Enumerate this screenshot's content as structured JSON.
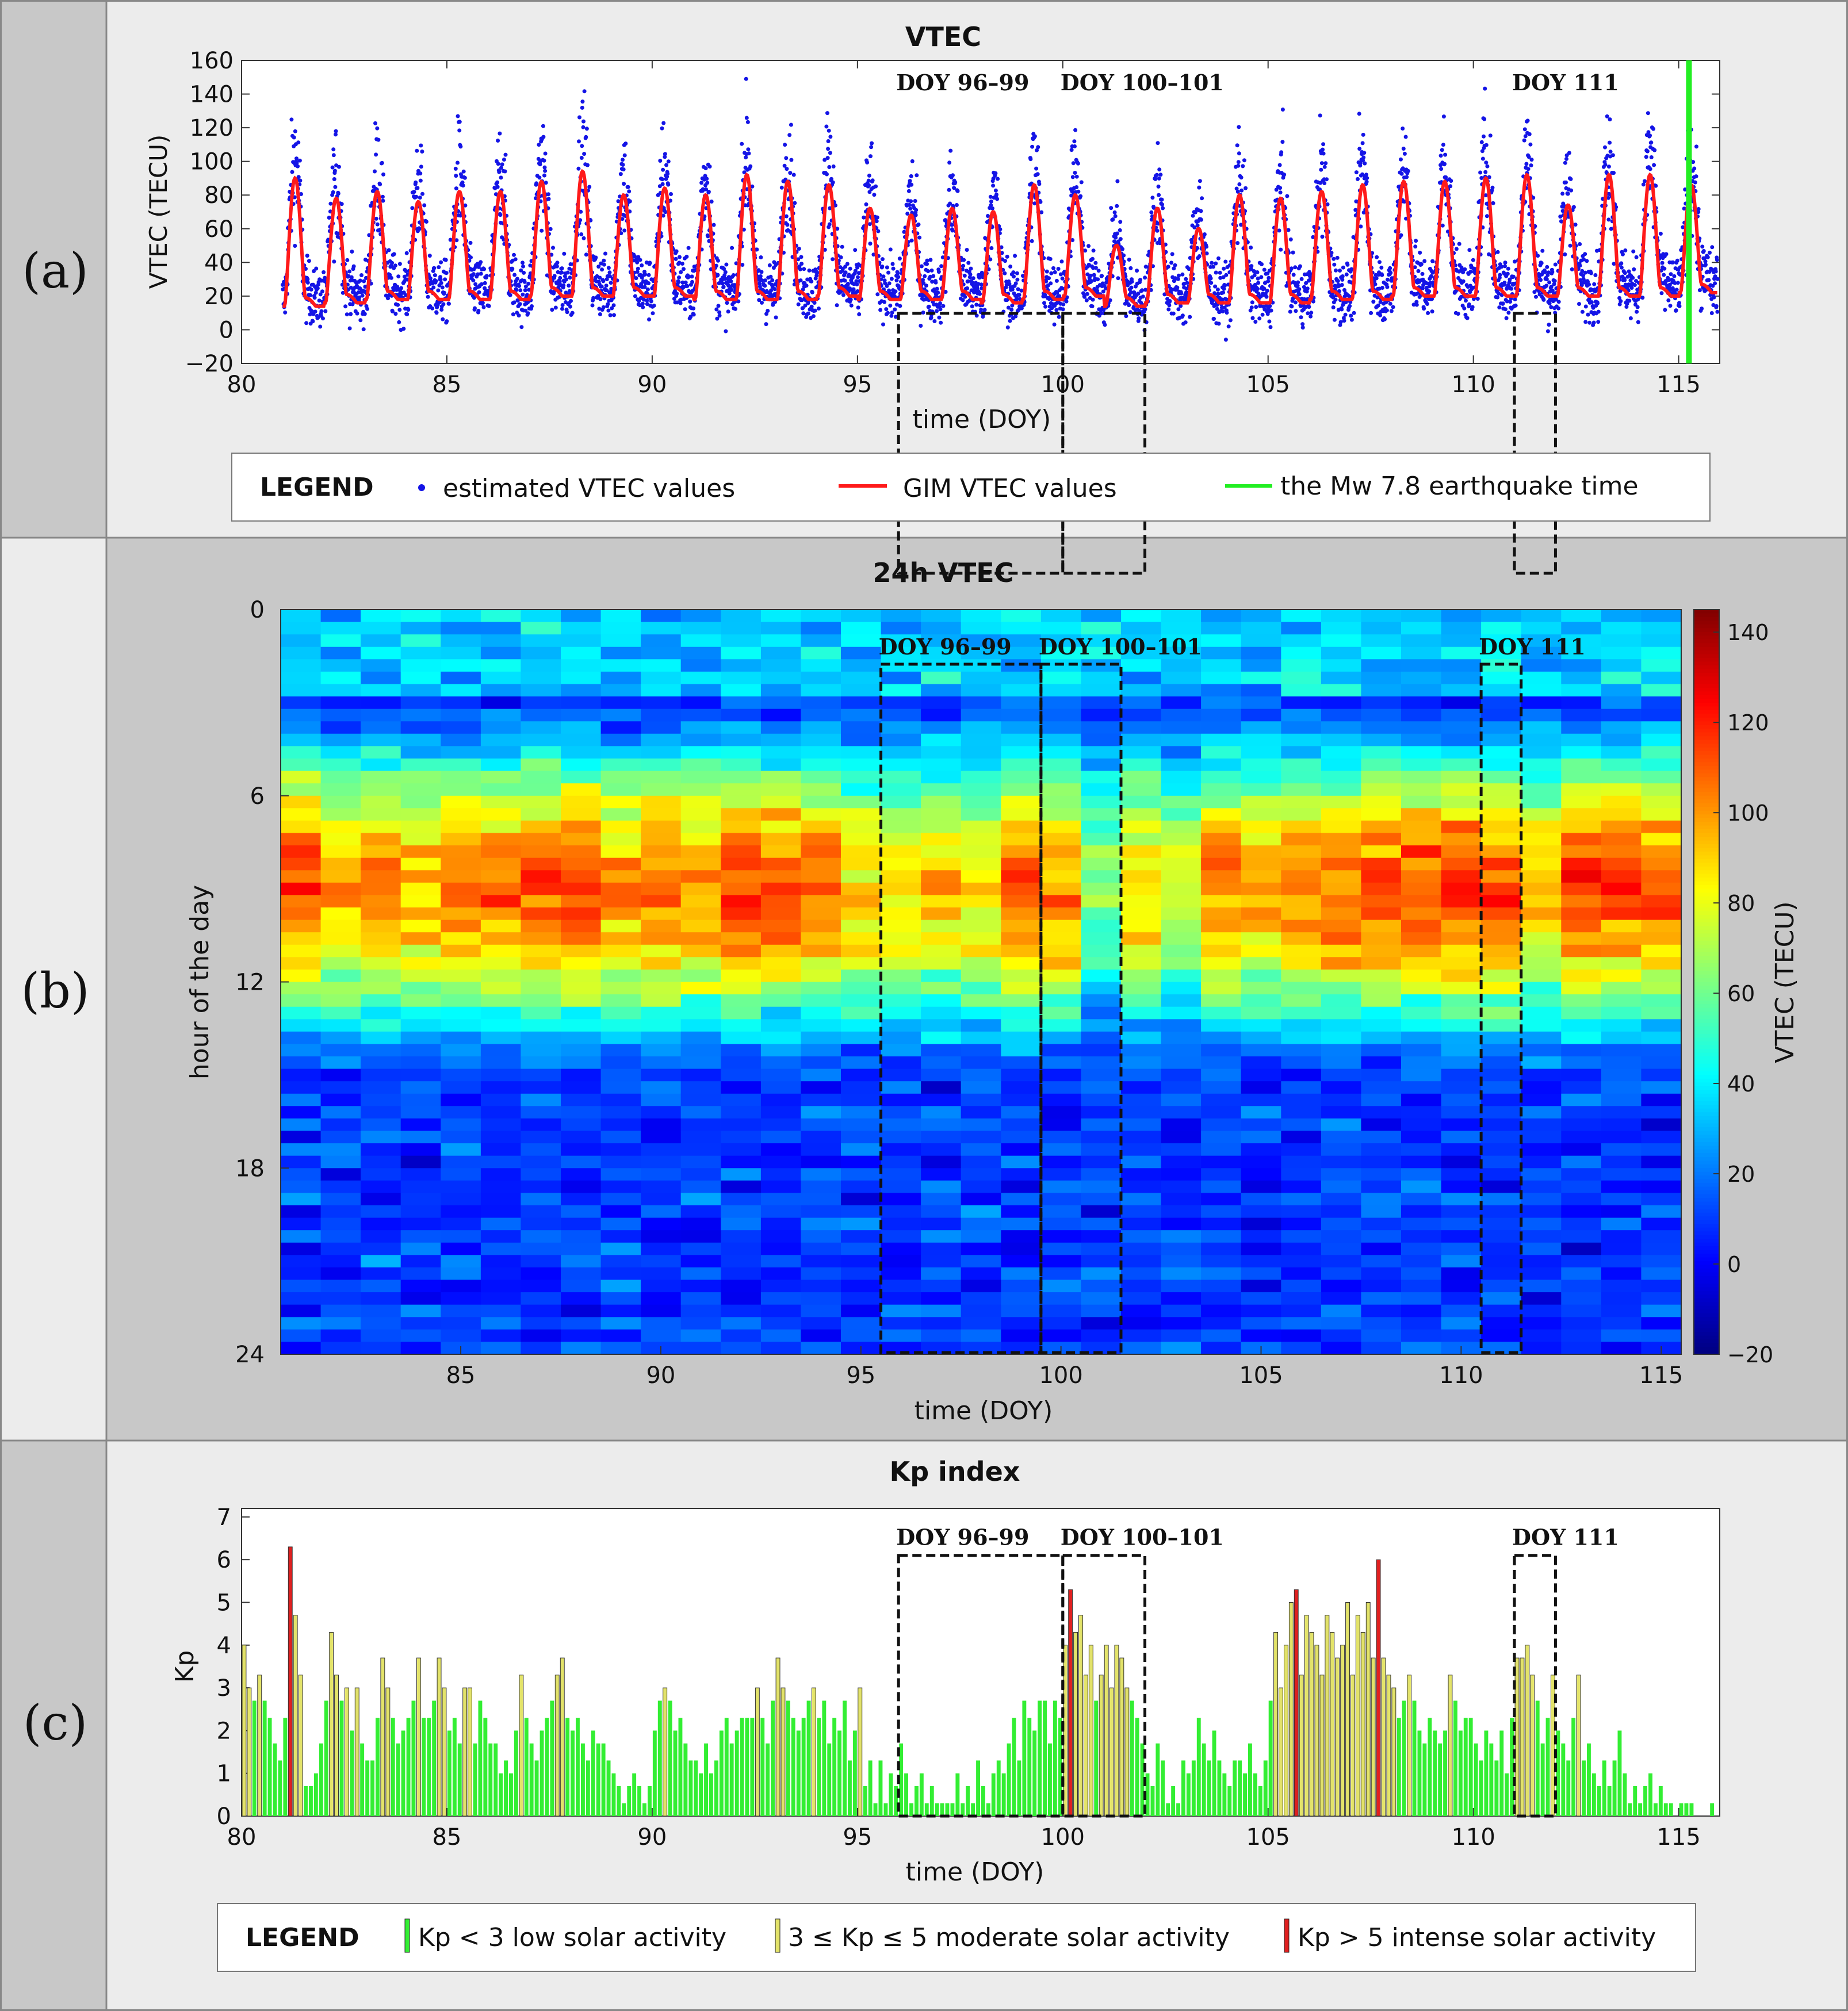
{
  "panels": [
    {
      "label": "(a)",
      "title": "VTEC"
    },
    {
      "label": "(b)",
      "title": "24h VTEC"
    },
    {
      "label": "(c)",
      "title": "Kp index"
    }
  ],
  "colors": {
    "estimated": "#1414e6",
    "gim": "#ff1a1a",
    "earthquake": "#22ee22",
    "kp_low": "#33ee33",
    "kp_moderate": "#e3e36a",
    "kp_intense": "#e02020",
    "left_strip": "#c8c8c8",
    "panel_bg_a": "#ececec",
    "panel_bg_b": "#c8c8c8",
    "panel_bg_c": "#ececec"
  },
  "chart_data": [
    {
      "type": "scatter",
      "title": "VTEC",
      "xlabel": "time (DOY)",
      "ylabel": "VTEC (TECU)",
      "xlim": [
        80,
        116
      ],
      "ylim": [
        -20,
        160
      ],
      "xticks": [
        "80",
        "85",
        "90",
        "95",
        "100",
        "105",
        "110",
        "115"
      ],
      "yticks": [
        "−20",
        "0",
        "20",
        "40",
        "60",
        "80",
        "100",
        "120",
        "140",
        "160"
      ],
      "series": [
        {
          "name": "estimated VTEC values",
          "style": "dots"
        },
        {
          "name": "GIM VTEC values",
          "style": "line",
          "daily_peak_tecu": [
            90,
            78,
            82,
            76,
            82,
            82,
            88,
            94,
            80,
            84,
            80,
            92,
            88,
            86,
            72,
            68,
            72,
            70,
            86,
            80,
            50,
            72,
            60,
            80,
            78,
            82,
            86,
            88,
            88,
            90,
            92,
            74,
            92,
            92,
            86,
            86
          ],
          "daily_min_tecu": [
            14,
            16,
            18,
            18,
            18,
            18,
            20,
            20,
            20,
            20,
            18,
            18,
            18,
            20,
            18,
            18,
            18,
            16,
            18,
            20,
            14,
            16,
            16,
            16,
            16,
            18,
            18,
            20,
            20,
            20,
            20,
            20,
            20,
            20,
            22,
            22
          ]
        },
        {
          "name": "the Mw 7.8 earthquake time",
          "style": "vline",
          "x": 115.25
        }
      ],
      "annotations": [
        {
          "text": "DOY 96–99",
          "x0": 96,
          "x1": 100
        },
        {
          "text": "DOY 100–101",
          "x0": 100,
          "x1": 102
        },
        {
          "text": "DOY 111",
          "x0": 111,
          "x1": 112
        }
      ],
      "legend": {
        "title": "LEGEND",
        "placement": "bottom"
      }
    },
    {
      "type": "heatmap",
      "title": "24h VTEC",
      "xlabel": "time (DOY)",
      "ylabel": "hour of the day",
      "colorbar_label": "VTEC (TECU)",
      "xlim": [
        80.5,
        115.5
      ],
      "ylim": [
        0,
        24
      ],
      "clim": [
        -20,
        145
      ],
      "xticks": [
        "85",
        "90",
        "95",
        "100",
        "105",
        "110",
        "115"
      ],
      "yticks": [
        "0",
        "6",
        "12",
        "18",
        "24"
      ],
      "cticks": [
        "−20",
        "0",
        "20",
        "40",
        "60",
        "80",
        "100",
        "120",
        "140"
      ],
      "daily_peak_tecu": [
        90,
        78,
        82,
        76,
        82,
        82,
        88,
        94,
        80,
        84,
        80,
        92,
        88,
        86,
        72,
        68,
        72,
        70,
        86,
        80,
        50,
        72,
        60,
        80,
        78,
        82,
        86,
        88,
        88,
        90,
        92,
        74,
        92,
        92,
        86,
        86
      ],
      "annotations": [
        {
          "text": "DOY 96–99",
          "x0": 95.5,
          "x1": 99.5
        },
        {
          "text": "DOY 100–101",
          "x0": 99.5,
          "x1": 101.5
        },
        {
          "text": "DOY 111",
          "x0": 110.5,
          "x1": 111.5
        }
      ]
    },
    {
      "type": "bar",
      "title": "Kp index",
      "xlabel": "time (DOY)",
      "ylabel": "Kp",
      "xlim": [
        80,
        116
      ],
      "ylim": [
        0,
        7.2
      ],
      "xticks": [
        "80",
        "85",
        "90",
        "95",
        "100",
        "105",
        "110",
        "115"
      ],
      "yticks": [
        "0",
        "1",
        "2",
        "3",
        "4",
        "5",
        "6",
        "7"
      ],
      "bins_per_day": 8,
      "kp_values": [
        4,
        3,
        2.7,
        3.3,
        2.7,
        2.3,
        1.7,
        1.3,
        2.3,
        6.3,
        4.7,
        3.3,
        0.7,
        0.7,
        1,
        1.7,
        2.7,
        4.3,
        3.3,
        2.7,
        3,
        2,
        3,
        1.7,
        1.3,
        1.3,
        2.3,
        3.7,
        3,
        2.3,
        1.7,
        2,
        2.3,
        2.7,
        3.7,
        2.3,
        2.3,
        2.7,
        3.7,
        3,
        2,
        2.3,
        1.7,
        3,
        3,
        1.7,
        2.7,
        2.3,
        1.7,
        1.7,
        1,
        1.3,
        1,
        2,
        3.3,
        2.3,
        1.7,
        1.3,
        2,
        2.3,
        2.7,
        3.3,
        3.7,
        2.3,
        2,
        2.3,
        1.7,
        1.3,
        2,
        1.7,
        1.7,
        1.3,
        1,
        0.7,
        0.3,
        0.7,
        1,
        0.7,
        0.3,
        0.7,
        2,
        2.7,
        3,
        2.7,
        2,
        2.3,
        1.7,
        1.3,
        1.3,
        1,
        1.7,
        1,
        1.3,
        2,
        2.3,
        1.7,
        2,
        2.3,
        2.3,
        2.3,
        3,
        2.3,
        1.7,
        2.7,
        3.7,
        3,
        2.7,
        2.3,
        2,
        2.3,
        2.7,
        3,
        2.3,
        2.7,
        1.7,
        2.3,
        2,
        2.7,
        1.3,
        2,
        3,
        0.7,
        1.3,
        0.3,
        1.3,
        0.3,
        1,
        0.7,
        1.7,
        1,
        0.3,
        0.7,
        1,
        0.3,
        0.7,
        0.3,
        0.3,
        0.3,
        0.3,
        1,
        0.3,
        0.7,
        0.3,
        1.3,
        0.7,
        0.3,
        1,
        1.3,
        1,
        1.7,
        2.3,
        1.3,
        2.7,
        2.3,
        2,
        2.7,
        2.7,
        1.7,
        2.7,
        2.3,
        4,
        5.3,
        4.3,
        4.7,
        3.3,
        4,
        2.7,
        3.3,
        4,
        3,
        4,
        3.7,
        3,
        2.7,
        2.3,
        1.7,
        1,
        0.7,
        1.7,
        1.3,
        0.3,
        0.7,
        0.3,
        1.3,
        1,
        1.3,
        2.3,
        1.7,
        1.3,
        2,
        1.3,
        1,
        0.7,
        1.3,
        1.3,
        1,
        1.7,
        1,
        0.7,
        1.3,
        2.7,
        4.3,
        3,
        4,
        5,
        5.3,
        3.3,
        4.7,
        4.3,
        4,
        3.3,
        4.7,
        4.3,
        3.7,
        4,
        5,
        3.3,
        4.7,
        4.3,
        5,
        3.7,
        6,
        3.7,
        3.3,
        3,
        2.3,
        2.7,
        3.3,
        2.7,
        2,
        1.7,
        2.3,
        2,
        1.7,
        2,
        3.3,
        2.7,
        2,
        2.3,
        2.3,
        1.7,
        1.3,
        2,
        1.7,
        1.3,
        2,
        1,
        2.3,
        3.7,
        3.7,
        4,
        3.3,
        2.7,
        1.7,
        2.3,
        3.3,
        2,
        1.7,
        1.3,
        2.3,
        3.3,
        1.3,
        1.7,
        1,
        0.7,
        1.3,
        0.7,
        1.3,
        2,
        1,
        0.3,
        0.7,
        0.3,
        0.7,
        1,
        0.3,
        0.7,
        0.3,
        0.3,
        0,
        0.3,
        0.3,
        0.3,
        0,
        0,
        0,
        0.3,
        0
      ],
      "annotations": [
        {
          "text": "DOY 96–99",
          "x0": 96,
          "x1": 100
        },
        {
          "text": "DOY 100–101",
          "x0": 100,
          "x1": 102
        },
        {
          "text": "DOY 111",
          "x0": 111,
          "x1": 112
        }
      ],
      "legend": {
        "title": "LEGEND",
        "placement": "bottom",
        "entries": [
          "Kp < 3 low solar activity",
          "3 ≤ Kp ≤ 5 moderate solar activity",
          "Kp > 5 intense solar activity"
        ]
      }
    }
  ]
}
